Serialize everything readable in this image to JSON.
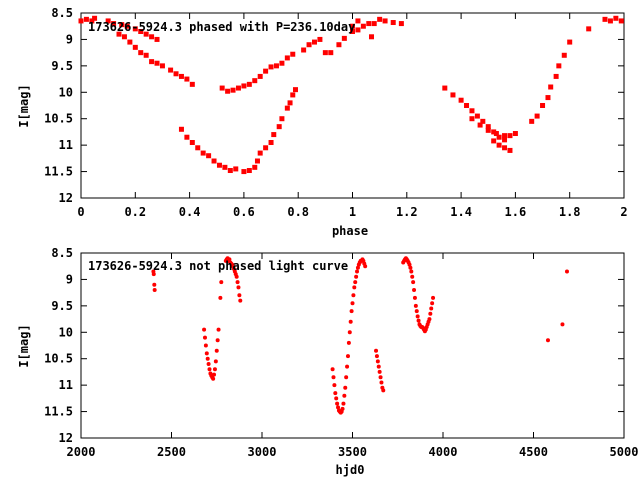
{
  "colors": {
    "points": "#ff0000",
    "axes": "#000000",
    "background": "#ffffff"
  },
  "chart_data": [
    {
      "type": "scatter",
      "title": "173626-5924.3 phased with P=236.10day",
      "xlabel": "phase",
      "ylabel": "I[mag]",
      "xlim": [
        0,
        2
      ],
      "ylim": [
        8.5,
        12
      ],
      "y_inverted": true,
      "grid": false,
      "marker": "filled-square",
      "x_ticks": [
        "0",
        "0.2",
        "0.4",
        "0.6",
        "0.8",
        "1",
        "1.2",
        "1.4",
        "1.6",
        "1.8",
        "2"
      ],
      "y_ticks": [
        "8.5",
        "9",
        "9.5",
        "10",
        "10.5",
        "11",
        "11.5",
        "12"
      ],
      "points": [
        [
          0.0,
          8.65
        ],
        [
          0.02,
          8.62
        ],
        [
          0.04,
          8.65
        ],
        [
          0.05,
          8.6
        ],
        [
          0.1,
          8.65
        ],
        [
          0.12,
          8.7
        ],
        [
          0.15,
          8.72
        ],
        [
          0.17,
          8.75
        ],
        [
          0.2,
          8.8
        ],
        [
          0.22,
          8.85
        ],
        [
          0.24,
          8.9
        ],
        [
          0.26,
          8.95
        ],
        [
          0.28,
          9.0
        ],
        [
          0.14,
          8.9
        ],
        [
          0.16,
          8.95
        ],
        [
          0.18,
          9.05
        ],
        [
          0.2,
          9.15
        ],
        [
          0.22,
          9.25
        ],
        [
          0.24,
          9.3
        ],
        [
          0.26,
          9.42
        ],
        [
          0.28,
          9.45
        ],
        [
          0.3,
          9.5
        ],
        [
          0.33,
          9.58
        ],
        [
          0.35,
          9.65
        ],
        [
          0.37,
          9.7
        ],
        [
          0.39,
          9.75
        ],
        [
          0.41,
          9.85
        ],
        [
          0.37,
          10.7
        ],
        [
          0.39,
          10.85
        ],
        [
          0.41,
          10.95
        ],
        [
          0.43,
          11.05
        ],
        [
          0.45,
          11.15
        ],
        [
          0.47,
          11.2
        ],
        [
          0.49,
          11.3
        ],
        [
          0.51,
          11.38
        ],
        [
          0.53,
          11.42
        ],
        [
          0.55,
          11.48
        ],
        [
          0.57,
          11.45
        ],
        [
          0.6,
          11.5
        ],
        [
          0.62,
          11.48
        ],
        [
          0.64,
          11.42
        ],
        [
          0.65,
          11.3
        ],
        [
          0.66,
          11.15
        ],
        [
          0.68,
          11.05
        ],
        [
          0.7,
          10.95
        ],
        [
          0.71,
          10.8
        ],
        [
          0.73,
          10.65
        ],
        [
          0.74,
          10.5
        ],
        [
          0.76,
          10.3
        ],
        [
          0.77,
          10.2
        ],
        [
          0.78,
          10.05
        ],
        [
          0.79,
          9.95
        ],
        [
          0.52,
          9.92
        ],
        [
          0.54,
          9.98
        ],
        [
          0.56,
          9.96
        ],
        [
          0.58,
          9.92
        ],
        [
          0.6,
          9.88
        ],
        [
          0.62,
          9.85
        ],
        [
          0.64,
          9.78
        ],
        [
          0.66,
          9.7
        ],
        [
          0.68,
          9.6
        ],
        [
          0.7,
          9.52
        ],
        [
          0.72,
          9.5
        ],
        [
          0.74,
          9.45
        ],
        [
          0.76,
          9.35
        ],
        [
          0.78,
          9.28
        ],
        [
          0.82,
          9.2
        ],
        [
          0.84,
          9.1
        ],
        [
          0.86,
          9.05
        ],
        [
          0.88,
          9.0
        ],
        [
          0.9,
          9.25
        ],
        [
          0.92,
          9.25
        ],
        [
          0.95,
          9.1
        ],
        [
          0.97,
          8.98
        ],
        [
          1.0,
          8.85
        ],
        [
          1.02,
          8.82
        ],
        [
          1.04,
          8.75
        ],
        [
          1.06,
          8.7
        ],
        [
          1.08,
          8.7
        ],
        [
          1.1,
          8.62
        ],
        [
          1.12,
          8.65
        ],
        [
          1.15,
          8.68
        ],
        [
          1.18,
          8.7
        ],
        [
          1.0,
          8.75
        ],
        [
          1.02,
          8.65
        ],
        [
          1.07,
          8.95
        ],
        [
          1.34,
          9.92
        ],
        [
          1.37,
          10.05
        ],
        [
          1.4,
          10.15
        ],
        [
          1.42,
          10.25
        ],
        [
          1.44,
          10.35
        ],
        [
          1.46,
          10.45
        ],
        [
          1.48,
          10.55
        ],
        [
          1.5,
          10.65
        ],
        [
          1.52,
          10.75
        ],
        [
          1.54,
          10.85
        ],
        [
          1.56,
          10.9
        ],
        [
          1.58,
          10.82
        ],
        [
          1.6,
          10.78
        ],
        [
          1.52,
          10.92
        ],
        [
          1.54,
          11.0
        ],
        [
          1.56,
          11.05
        ],
        [
          1.58,
          11.1
        ],
        [
          1.44,
          10.5
        ],
        [
          1.47,
          10.62
        ],
        [
          1.5,
          10.72
        ],
        [
          1.53,
          10.78
        ],
        [
          1.56,
          10.82
        ],
        [
          1.66,
          10.55
        ],
        [
          1.68,
          10.45
        ],
        [
          1.7,
          10.25
        ],
        [
          1.72,
          10.1
        ],
        [
          1.73,
          9.9
        ],
        [
          1.75,
          9.7
        ],
        [
          1.76,
          9.5
        ],
        [
          1.78,
          9.3
        ],
        [
          1.8,
          9.05
        ],
        [
          1.87,
          8.8
        ],
        [
          1.95,
          8.65
        ],
        [
          1.97,
          8.6
        ],
        [
          1.99,
          8.65
        ],
        [
          1.93,
          8.62
        ]
      ]
    },
    {
      "type": "scatter",
      "title": "173626-5924.3 not phased light curve",
      "xlabel": "hjd0",
      "ylabel": "I[mag]",
      "xlim": [
        2000,
        5000
      ],
      "ylim": [
        8.5,
        12
      ],
      "y_inverted": true,
      "grid": false,
      "marker": "filled-circle",
      "x_ticks": [
        "2000",
        "2500",
        "3000",
        "3500",
        "4000",
        "4500",
        "5000"
      ],
      "y_ticks": [
        "8.5",
        "9",
        "9.5",
        "10",
        "10.5",
        "11",
        "11.5",
        "12"
      ],
      "points": [
        [
          2400,
          8.85
        ],
        [
          2402,
          8.9
        ],
        [
          2405,
          9.1
        ],
        [
          2407,
          9.2
        ],
        [
          2680,
          9.95
        ],
        [
          2685,
          10.1
        ],
        [
          2690,
          10.25
        ],
        [
          2695,
          10.4
        ],
        [
          2700,
          10.5
        ],
        [
          2705,
          10.6
        ],
        [
          2710,
          10.7
        ],
        [
          2715,
          10.78
        ],
        [
          2720,
          10.82
        ],
        [
          2725,
          10.85
        ],
        [
          2730,
          10.88
        ],
        [
          2735,
          10.8
        ],
        [
          2740,
          10.7
        ],
        [
          2745,
          10.55
        ],
        [
          2750,
          10.35
        ],
        [
          2755,
          10.15
        ],
        [
          2760,
          9.95
        ],
        [
          2770,
          9.35
        ],
        [
          2775,
          9.05
        ],
        [
          2800,
          8.65
        ],
        [
          2805,
          8.62
        ],
        [
          2810,
          8.6
        ],
        [
          2815,
          8.65
        ],
        [
          2820,
          8.62
        ],
        [
          2825,
          8.68
        ],
        [
          2830,
          8.7
        ],
        [
          2835,
          8.72
        ],
        [
          2840,
          8.75
        ],
        [
          2845,
          8.8
        ],
        [
          2850,
          8.85
        ],
        [
          2855,
          8.9
        ],
        [
          2860,
          8.95
        ],
        [
          2865,
          9.05
        ],
        [
          2870,
          9.15
        ],
        [
          2875,
          9.3
        ],
        [
          2880,
          9.4
        ],
        [
          3390,
          10.7
        ],
        [
          3395,
          10.85
        ],
        [
          3400,
          11.0
        ],
        [
          3405,
          11.15
        ],
        [
          3410,
          11.25
        ],
        [
          3415,
          11.35
        ],
        [
          3420,
          11.42
        ],
        [
          3425,
          11.48
        ],
        [
          3430,
          11.5
        ],
        [
          3435,
          11.52
        ],
        [
          3440,
          11.5
        ],
        [
          3445,
          11.45
        ],
        [
          3450,
          11.35
        ],
        [
          3455,
          11.2
        ],
        [
          3460,
          11.05
        ],
        [
          3465,
          10.85
        ],
        [
          3470,
          10.65
        ],
        [
          3475,
          10.45
        ],
        [
          3480,
          10.2
        ],
        [
          3485,
          10.0
        ],
        [
          3490,
          9.8
        ],
        [
          3495,
          9.6
        ],
        [
          3500,
          9.45
        ],
        [
          3505,
          9.3
        ],
        [
          3510,
          9.15
        ],
        [
          3515,
          9.05
        ],
        [
          3520,
          8.95
        ],
        [
          3525,
          8.85
        ],
        [
          3530,
          8.78
        ],
        [
          3535,
          8.72
        ],
        [
          3540,
          8.68
        ],
        [
          3545,
          8.65
        ],
        [
          3550,
          8.65
        ],
        [
          3555,
          8.62
        ],
        [
          3560,
          8.65
        ],
        [
          3565,
          8.7
        ],
        [
          3570,
          8.75
        ],
        [
          3630,
          10.35
        ],
        [
          3635,
          10.45
        ],
        [
          3640,
          10.55
        ],
        [
          3645,
          10.65
        ],
        [
          3650,
          10.75
        ],
        [
          3655,
          10.85
        ],
        [
          3660,
          10.95
        ],
        [
          3665,
          11.05
        ],
        [
          3670,
          11.1
        ],
        [
          3780,
          8.68
        ],
        [
          3785,
          8.65
        ],
        [
          3790,
          8.62
        ],
        [
          3795,
          8.6
        ],
        [
          3800,
          8.62
        ],
        [
          3805,
          8.65
        ],
        [
          3810,
          8.68
        ],
        [
          3815,
          8.72
        ],
        [
          3820,
          8.78
        ],
        [
          3825,
          8.85
        ],
        [
          3830,
          8.95
        ],
        [
          3835,
          9.05
        ],
        [
          3840,
          9.2
        ],
        [
          3845,
          9.35
        ],
        [
          3850,
          9.5
        ],
        [
          3855,
          9.6
        ],
        [
          3860,
          9.7
        ],
        [
          3865,
          9.78
        ],
        [
          3870,
          9.85
        ],
        [
          3875,
          9.88
        ],
        [
          3880,
          9.9
        ],
        [
          3885,
          9.9
        ],
        [
          3890,
          9.92
        ],
        [
          3895,
          9.95
        ],
        [
          3900,
          9.98
        ],
        [
          3905,
          9.95
        ],
        [
          3910,
          9.9
        ],
        [
          3915,
          9.85
        ],
        [
          3920,
          9.8
        ],
        [
          3925,
          9.75
        ],
        [
          3930,
          9.65
        ],
        [
          3935,
          9.55
        ],
        [
          3940,
          9.45
        ],
        [
          3945,
          9.35
        ],
        [
          4580,
          10.15
        ],
        [
          4660,
          9.85
        ],
        [
          4685,
          8.85
        ]
      ]
    }
  ]
}
